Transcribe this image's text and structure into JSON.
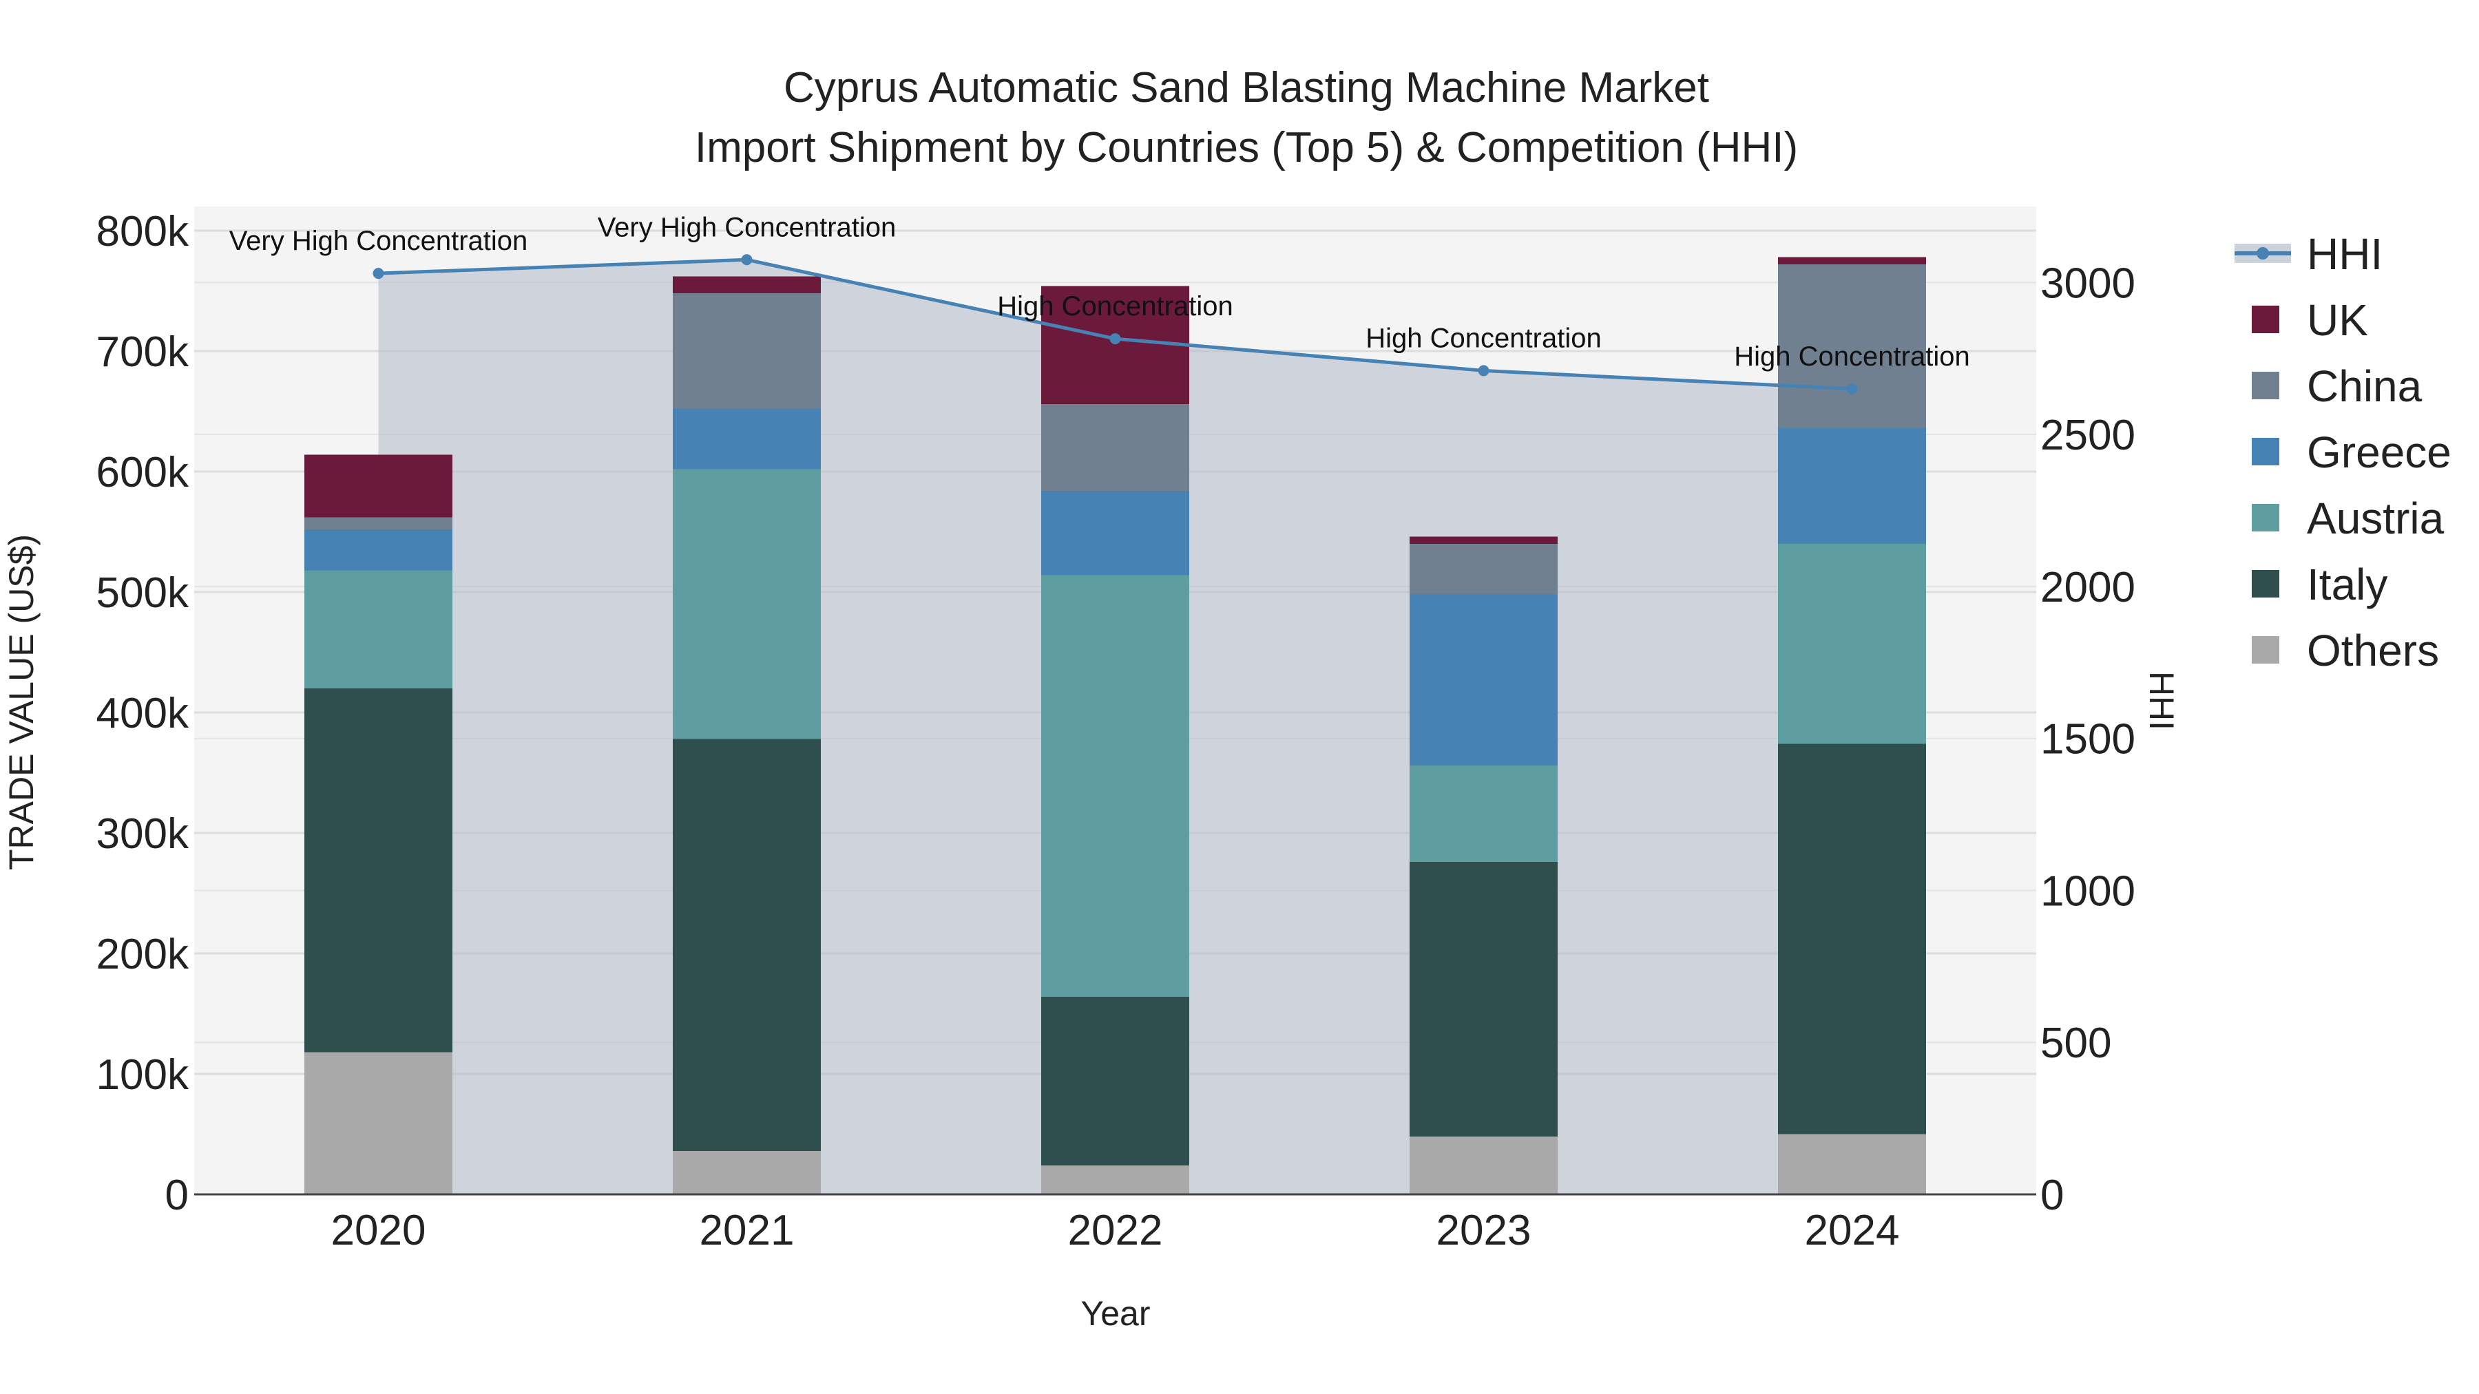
{
  "chart_data": {
    "type": "bar",
    "title": "Cyprus Automatic Sand Blasting Machine Market",
    "subtitle": "Import Shipment by Countries (Top 5) & Competition (HHI)",
    "xlabel": "Year",
    "ylabel": "TRADE VALUE (US$)",
    "y2label": "HHI",
    "categories": [
      "2020",
      "2021",
      "2022",
      "2023",
      "2024"
    ],
    "ylim": [
      0,
      820000
    ],
    "y2lim": [
      0,
      3250
    ],
    "y_ticks": [
      {
        "value": 0,
        "label": "0"
      },
      {
        "value": 100000,
        "label": "100k"
      },
      {
        "value": 200000,
        "label": "200k"
      },
      {
        "value": 300000,
        "label": "300k"
      },
      {
        "value": 400000,
        "label": "400k"
      },
      {
        "value": 500000,
        "label": "500k"
      },
      {
        "value": 600000,
        "label": "600k"
      },
      {
        "value": 700000,
        "label": "700k"
      },
      {
        "value": 800000,
        "label": "800k"
      }
    ],
    "y2_ticks": [
      {
        "value": 0,
        "label": "0"
      },
      {
        "value": 500,
        "label": "500"
      },
      {
        "value": 1000,
        "label": "1000"
      },
      {
        "value": 1500,
        "label": "1500"
      },
      {
        "value": 2000,
        "label": "2000"
      },
      {
        "value": 2500,
        "label": "2500"
      },
      {
        "value": 3000,
        "label": "3000"
      }
    ],
    "series": [
      {
        "name": "Others",
        "color": "#a9a9a9",
        "values": [
          118000,
          36000,
          24000,
          48000,
          50000
        ]
      },
      {
        "name": "Italy",
        "color": "#2f4f4f",
        "values": [
          302000,
          342000,
          140000,
          228000,
          324000
        ]
      },
      {
        "name": "Austria",
        "color": "#5f9ea0",
        "values": [
          98000,
          224000,
          350000,
          80000,
          166000
        ]
      },
      {
        "name": "Greece",
        "color": "#4682b4",
        "values": [
          34000,
          50000,
          70000,
          142000,
          96000
        ]
      },
      {
        "name": "China",
        "color": "#708090",
        "values": [
          10000,
          96000,
          72000,
          42000,
          136000
        ]
      },
      {
        "name": "UK",
        "color": "#6b1a3c",
        "values": [
          52000,
          14000,
          98000,
          6000,
          6000
        ]
      }
    ],
    "hhi": {
      "name": "HHI",
      "color": "#4682b4",
      "values": [
        3030,
        3075,
        2815,
        2710,
        2650
      ],
      "annotations": [
        "Very High Concentration",
        "Very High Concentration",
        "High Concentration",
        "High Concentration",
        "High Concentration"
      ]
    },
    "legend": [
      "HHI",
      "UK",
      "China",
      "Greece",
      "Austria",
      "Italy",
      "Others"
    ],
    "legend_position": "right",
    "grid": true
  }
}
